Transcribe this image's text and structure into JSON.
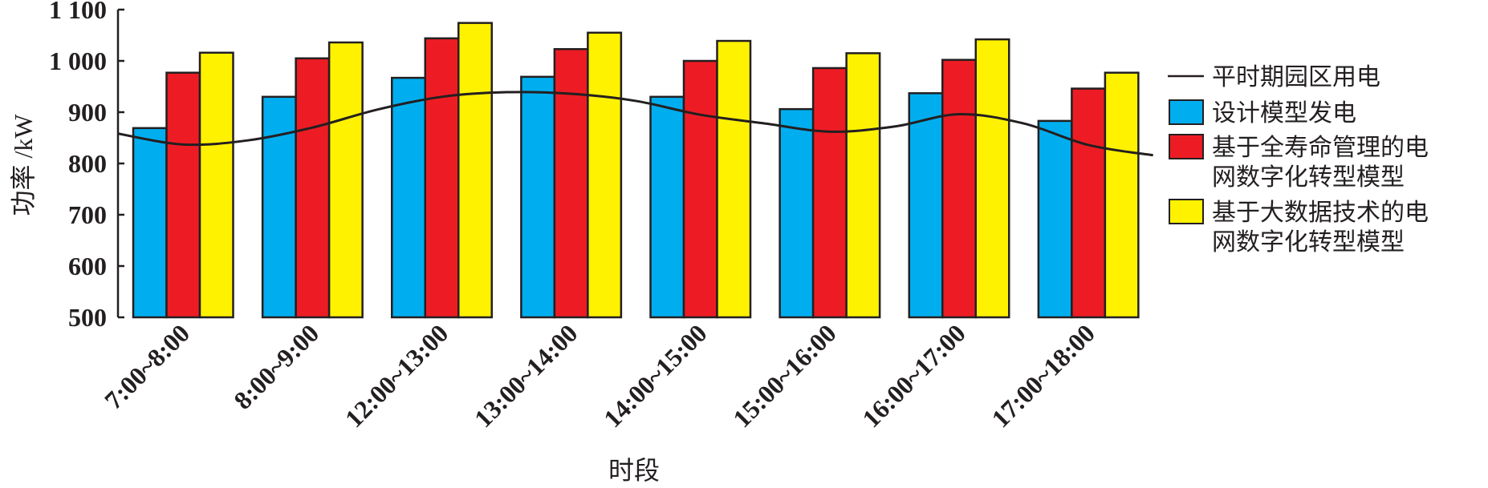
{
  "chart_data": {
    "type": "bar",
    "title": "",
    "xlabel": "时段",
    "ylabel": "功率 /kW",
    "ylim": [
      500,
      1100
    ],
    "yticks": [
      "500",
      "600",
      "700",
      "800",
      "900",
      "1 000",
      "1 100"
    ],
    "ytick_values": [
      500,
      600,
      700,
      800,
      900,
      1000,
      1100
    ],
    "categories": [
      "7:00~8:00",
      "8:00~9:00",
      "12:00~13:00",
      "13:00~14:00",
      "14:00~15:00",
      "15:00~16:00",
      "16:00~17:00",
      "17:00~18:00"
    ],
    "series": [
      {
        "name": "设计模型发电",
        "color": "#00aeef",
        "values": [
          869,
          930,
          967,
          969,
          930,
          906,
          937,
          883
        ]
      },
      {
        "name": "基于全寿命管理的电网数字化转型模型",
        "legend_lines": [
          "基于全寿命管理的电",
          "网数字化转型模型"
        ],
        "color": "#ed1c24",
        "values": [
          977,
          1005,
          1044,
          1023,
          1000,
          986,
          1002,
          946
        ]
      },
      {
        "name": "基于大数据技术的电网数字化转型模型",
        "legend_lines": [
          "基于大数据技术的电",
          "网数字化转型模型"
        ],
        "color": "#fff200",
        "values": [
          1016,
          1036,
          1074,
          1055,
          1039,
          1015,
          1042,
          977
        ]
      }
    ],
    "line": {
      "name": "平时期园区用电",
      "type": "line",
      "color": "#231f20",
      "x": [
        -0.5,
        0,
        0.5,
        1,
        1.5,
        2,
        2.5,
        3,
        3.5,
        4,
        4.5,
        5,
        5.5,
        6,
        6.5,
        7,
        7.5
      ],
      "y": [
        858,
        837,
        845,
        870,
        905,
        930,
        939,
        936,
        922,
        895,
        878,
        862,
        872,
        896,
        878,
        836,
        816
      ]
    },
    "legend_position": "right",
    "grid": false
  }
}
